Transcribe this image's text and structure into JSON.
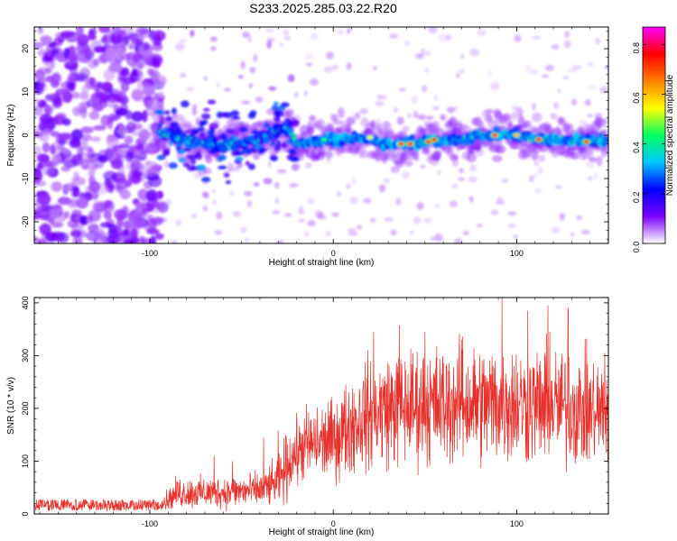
{
  "title": "S233.2025.285.03.22.R20",
  "colors": {
    "line": "#e8302a",
    "frame": "#000000",
    "background": "#ffffff"
  },
  "chart_data": [
    {
      "type": "heatmap",
      "xlabel": "Height of straight line (km)",
      "ylabel": "Frequency (Hz)",
      "xlim": [
        -163,
        150
      ],
      "ylim": [
        -25,
        25
      ],
      "xticks": [
        {
          "value": -100,
          "label": "-100"
        },
        {
          "value": 0,
          "label": "0"
        },
        {
          "value": 100,
          "label": "100"
        }
      ],
      "yticks": [
        {
          "value": 20,
          "label": "20"
        },
        {
          "value": 10,
          "label": "10"
        },
        {
          "value": 0,
          "label": "0"
        },
        {
          "value": -10,
          "label": "-10"
        },
        {
          "value": -20,
          "label": "-20"
        }
      ],
      "colorbar": {
        "label": "Normalized spectral amplitude",
        "range": [
          0,
          0.87
        ],
        "ticks": [
          {
            "value": 0.0,
            "label": "0.0"
          },
          {
            "value": 0.2,
            "label": "0.2"
          },
          {
            "value": 0.4,
            "label": "0.4"
          },
          {
            "value": 0.6,
            "label": "0.6"
          },
          {
            "value": 0.8,
            "label": "0.8"
          }
        ],
        "colormap": [
          "#ffffff",
          "#7b00ff",
          "#0000ff",
          "#00c8ff",
          "#00ff60",
          "#ffff00",
          "#ff8000",
          "#ff0000",
          "#ff00ff"
        ]
      },
      "ridge": {
        "points": [
          {
            "x": -95,
            "y": 0.5
          },
          {
            "x": -85,
            "y": -0.5
          },
          {
            "x": -70,
            "y": -2
          },
          {
            "x": -55,
            "y": -2
          },
          {
            "x": -40,
            "y": -1
          },
          {
            "x": -25,
            "y": 2
          },
          {
            "x": -20,
            "y": -2
          },
          {
            "x": 0,
            "y": -1
          },
          {
            "x": 20,
            "y": -1
          },
          {
            "x": 30,
            "y": -2
          },
          {
            "x": 50,
            "y": -1.5
          },
          {
            "x": 70,
            "y": -1
          },
          {
            "x": 80,
            "y": 0
          },
          {
            "x": 100,
            "y": 0
          },
          {
            "x": 110,
            "y": -1
          },
          {
            "x": 130,
            "y": -1
          },
          {
            "x": 150,
            "y": -1.5
          }
        ],
        "peaks": [
          {
            "x": 37,
            "y": -2,
            "amp": 0.8
          },
          {
            "x": 42,
            "y": -2,
            "amp": 0.8
          },
          {
            "x": 52,
            "y": -1.5,
            "amp": 0.75
          },
          {
            "x": 55,
            "y": -1,
            "amp": 0.75
          },
          {
            "x": 88,
            "y": 0,
            "amp": 0.8
          },
          {
            "x": 112,
            "y": -1,
            "amp": 0.8
          },
          {
            "x": 138,
            "y": -1.5,
            "amp": 0.7
          },
          {
            "x": 100,
            "y": 0,
            "amp": 0.6
          },
          {
            "x": 20,
            "y": -0.5,
            "amp": 0.55
          },
          {
            "x": -5,
            "y": -1,
            "amp": 0.45
          }
        ]
      }
    },
    {
      "type": "line",
      "xlabel": "Height of straight line (km)",
      "ylabel": "SNR (10 * v/v)",
      "xlim": [
        -163,
        150
      ],
      "ylim": [
        0,
        410
      ],
      "xticks": [
        {
          "value": -100,
          "label": "-100"
        },
        {
          "value": 0,
          "label": "0"
        },
        {
          "value": 100,
          "label": "100"
        }
      ],
      "yticks": [
        {
          "value": 0,
          "label": "0"
        },
        {
          "value": 100,
          "label": "100"
        },
        {
          "value": 200,
          "label": "200"
        },
        {
          "value": 300,
          "label": "300"
        },
        {
          "value": 400,
          "label": "400"
        }
      ],
      "series": [
        {
          "name": "SNR",
          "trend": [
            {
              "x": -163,
              "y": 17
            },
            {
              "x": -95,
              "y": 17
            },
            {
              "x": -90,
              "y": 27
            },
            {
              "x": -85,
              "y": 40
            },
            {
              "x": -70,
              "y": 40
            },
            {
              "x": -55,
              "y": 42
            },
            {
              "x": -40,
              "y": 45
            },
            {
              "x": -30,
              "y": 60
            },
            {
              "x": -22,
              "y": 110
            },
            {
              "x": -15,
              "y": 130
            },
            {
              "x": 0,
              "y": 140
            },
            {
              "x": 10,
              "y": 170
            },
            {
              "x": 20,
              "y": 190
            },
            {
              "x": 30,
              "y": 200
            },
            {
              "x": 50,
              "y": 205
            },
            {
              "x": 80,
              "y": 210
            },
            {
              "x": 100,
              "y": 210
            },
            {
              "x": 130,
              "y": 200
            },
            {
              "x": 150,
              "y": 190
            }
          ],
          "spikes": [
            {
              "x": 92,
              "y": 410
            },
            {
              "x": 117,
              "y": 395
            },
            {
              "x": 128,
              "y": 390
            },
            {
              "x": 106,
              "y": 385
            },
            {
              "x": 36,
              "y": 357
            },
            {
              "x": 22,
              "y": 345
            },
            {
              "x": 50,
              "y": 345
            },
            {
              "x": 118,
              "y": 345
            },
            {
              "x": 70,
              "y": 330
            },
            {
              "x": 148,
              "y": 305
            },
            {
              "x": -30,
              "y": 158
            },
            {
              "x": -38,
              "y": 145
            },
            {
              "x": -65,
              "y": 110
            },
            {
              "x": -55,
              "y": 100
            }
          ]
        }
      ]
    }
  ]
}
